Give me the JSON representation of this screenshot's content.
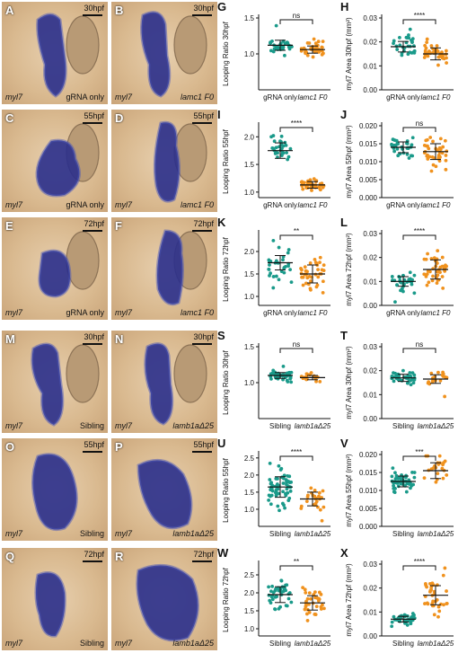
{
  "colors": {
    "control": "#1a9a8a",
    "mutant": "#f0921e"
  },
  "photos": [
    {
      "label": "A",
      "stage": "30hpf",
      "gene": "myl7",
      "condition": "gRNA only",
      "cond_italic": false
    },
    {
      "label": "B",
      "stage": "30hpf",
      "gene": "myl7",
      "condition": "lamc1 F0",
      "cond_italic": true
    },
    {
      "label": "C",
      "stage": "55hpf",
      "gene": "myl7",
      "condition": "gRNA only",
      "cond_italic": false
    },
    {
      "label": "D",
      "stage": "55hpf",
      "gene": "myl7",
      "condition": "lamc1 F0",
      "cond_italic": true
    },
    {
      "label": "E",
      "stage": "72hpf",
      "gene": "myl7",
      "condition": "gRNA only",
      "cond_italic": false
    },
    {
      "label": "F",
      "stage": "72hpf",
      "gene": "myl7",
      "condition": "lamc1 F0",
      "cond_italic": true
    },
    {
      "label": "M",
      "stage": "30hpf",
      "gene": "myl7",
      "condition": "Sibling",
      "cond_italic": false
    },
    {
      "label": "N",
      "stage": "30hpf",
      "gene": "myl7",
      "condition": "lamb1aΔ25",
      "cond_italic": true
    },
    {
      "label": "O",
      "stage": "55hpf",
      "gene": "myl7",
      "condition": "Sibling",
      "cond_italic": false
    },
    {
      "label": "P",
      "stage": "55hpf",
      "gene": "myl7",
      "condition": "lamb1aΔ25",
      "cond_italic": true
    },
    {
      "label": "Q",
      "stage": "72hpf",
      "gene": "myl7",
      "condition": "Sibling",
      "cond_italic": false
    },
    {
      "label": "R",
      "stage": "72hpf",
      "gene": "myl7",
      "condition": "lamb1aΔ25",
      "cond_italic": true
    }
  ],
  "chart_data": [
    {
      "panel": "G",
      "type": "scatter",
      "ylabel": "Looping Ratio 30hpf",
      "ylim": [
        0.5,
        1.5
      ],
      "yticks": [
        1.0,
        1.5
      ],
      "categories": [
        "gRNA only",
        "lamc1 F0"
      ],
      "significance": "ns",
      "series": [
        {
          "name": "gRNA only",
          "mean": 1.12,
          "sd": 0.07,
          "n": 30
        },
        {
          "name": "lamc1 F0",
          "mean": 1.06,
          "sd": 0.05,
          "n": 40
        }
      ]
    },
    {
      "panel": "H",
      "type": "scatter",
      "ylabel": "myl7 Area 30hpf (mm²)",
      "ylim": [
        0.0,
        0.03
      ],
      "yticks": [
        0.0,
        0.01,
        0.02,
        0.03
      ],
      "categories": [
        "gRNA only",
        "lamc1 F0"
      ],
      "significance": "****",
      "series": [
        {
          "name": "gRNA only",
          "mean": 0.018,
          "sd": 0.0022,
          "n": 30
        },
        {
          "name": "lamc1 F0",
          "mean": 0.015,
          "sd": 0.0025,
          "n": 40
        }
      ]
    },
    {
      "panel": "I",
      "type": "scatter",
      "ylabel": "Looping Ratio 55hpf",
      "ylim": [
        0.9,
        2.2
      ],
      "yticks": [
        1.0,
        1.5,
        2.0
      ],
      "categories": [
        "gRNA only",
        "lamc1 F0"
      ],
      "significance": "****",
      "series": [
        {
          "name": "gRNA only",
          "mean": 1.75,
          "sd": 0.14,
          "n": 30
        },
        {
          "name": "lamc1 F0",
          "mean": 1.13,
          "sd": 0.06,
          "n": 40
        }
      ]
    },
    {
      "panel": "J",
      "type": "scatter",
      "ylabel": "myl7 Area 55hpf (mm²)",
      "ylim": [
        0.0,
        0.02
      ],
      "yticks": [
        0.0,
        0.005,
        0.01,
        0.015,
        0.02
      ],
      "categories": [
        "gRNA only",
        "lamc1 F0"
      ],
      "significance": "ns",
      "series": [
        {
          "name": "gRNA only",
          "mean": 0.014,
          "sd": 0.0015,
          "n": 30
        },
        {
          "name": "lamc1 F0",
          "mean": 0.0128,
          "sd": 0.0022,
          "n": 40
        }
      ]
    },
    {
      "panel": "K",
      "type": "scatter",
      "ylabel": "Looping Ratio 72hpf",
      "ylim": [
        0.8,
        2.4
      ],
      "yticks": [
        1.0,
        1.5,
        2.0
      ],
      "categories": [
        "gRNA only",
        "lamc1 F0"
      ],
      "significance": "**",
      "series": [
        {
          "name": "gRNA only",
          "mean": 1.75,
          "sd": 0.16,
          "n": 30
        },
        {
          "name": "lamc1 F0",
          "mean": 1.5,
          "sd": 0.2,
          "n": 40
        }
      ]
    },
    {
      "panel": "L",
      "type": "scatter",
      "ylabel": "myl7 Area 72hpf (mm²)",
      "ylim": [
        0.0,
        0.03
      ],
      "yticks": [
        0.0,
        0.01,
        0.02,
        0.03
      ],
      "categories": [
        "gRNA only",
        "lamc1 F0"
      ],
      "significance": "****",
      "series": [
        {
          "name": "gRNA only",
          "mean": 0.01,
          "sd": 0.002,
          "n": 30
        },
        {
          "name": "lamc1 F0",
          "mean": 0.015,
          "sd": 0.004,
          "n": 40
        }
      ]
    },
    {
      "panel": "S",
      "type": "scatter",
      "ylabel": "Looping Ratio 30hpf",
      "ylim": [
        0.5,
        1.5
      ],
      "yticks": [
        1.0,
        1.5
      ],
      "categories": [
        "Sibling",
        "lamb1aΔ25"
      ],
      "significance": "ns",
      "series": [
        {
          "name": "Sibling",
          "mean": 1.1,
          "sd": 0.04,
          "n": 40
        },
        {
          "name": "lamb1aΔ25",
          "mean": 1.07,
          "sd": 0.03,
          "n": 18
        }
      ]
    },
    {
      "panel": "T",
      "type": "scatter",
      "ylabel": "myl7 Area 30hpf (mm²)",
      "ylim": [
        0.0,
        0.03
      ],
      "yticks": [
        0.0,
        0.01,
        0.02,
        0.03
      ],
      "categories": [
        "Sibling",
        "lamb1aΔ25"
      ],
      "significance": "ns",
      "series": [
        {
          "name": "Sibling",
          "mean": 0.017,
          "sd": 0.0015,
          "n": 40
        },
        {
          "name": "lamb1aΔ25",
          "mean": 0.0165,
          "sd": 0.0018,
          "n": 18
        }
      ]
    },
    {
      "panel": "U",
      "type": "scatter",
      "ylabel": "Looping Ratio 55hpf",
      "ylim": [
        0.5,
        2.6
      ],
      "yticks": [
        1.0,
        1.5,
        2.0,
        2.5
      ],
      "categories": [
        "Sibling",
        "lamb1aΔ25"
      ],
      "significance": "****",
      "series": [
        {
          "name": "Sibling",
          "mean": 1.65,
          "sd": 0.3,
          "n": 60
        },
        {
          "name": "lamb1aΔ25",
          "mean": 1.3,
          "sd": 0.2,
          "n": 25
        }
      ]
    },
    {
      "panel": "V",
      "type": "scatter",
      "ylabel": "myl7 Area 55hpf (mm²)",
      "ylim": [
        0.0,
        0.02
      ],
      "yticks": [
        0.0,
        0.005,
        0.01,
        0.015,
        0.02
      ],
      "categories": [
        "Sibling",
        "lamb1aΔ25"
      ],
      "significance": "***",
      "series": [
        {
          "name": "Sibling",
          "mean": 0.0125,
          "sd": 0.0015,
          "n": 50
        },
        {
          "name": "lamb1aΔ25",
          "mean": 0.0155,
          "sd": 0.0022,
          "n": 22
        }
      ]
    },
    {
      "panel": "W",
      "type": "scatter",
      "ylabel": "Looping Ratio 72hpf",
      "ylim": [
        0.8,
        2.8
      ],
      "yticks": [
        1.0,
        1.5,
        2.0,
        2.5
      ],
      "categories": [
        "Sibling",
        "lamb1aΔ25"
      ],
      "significance": "**",
      "series": [
        {
          "name": "Sibling",
          "mean": 1.95,
          "sd": 0.22,
          "n": 40
        },
        {
          "name": "lamb1aΔ25",
          "mean": 1.72,
          "sd": 0.2,
          "n": 35
        }
      ]
    },
    {
      "panel": "X",
      "type": "scatter",
      "ylabel": "myl7 Area 72hpf (mm²)",
      "ylim": [
        0.0,
        0.03
      ],
      "yticks": [
        0.0,
        0.01,
        0.02,
        0.03
      ],
      "categories": [
        "Sibling",
        "lamb1aΔ25"
      ],
      "significance": "****",
      "series": [
        {
          "name": "Sibling",
          "mean": 0.007,
          "sd": 0.0012,
          "n": 40
        },
        {
          "name": "lamb1aΔ25",
          "mean": 0.017,
          "sd": 0.004,
          "n": 35
        }
      ]
    }
  ]
}
